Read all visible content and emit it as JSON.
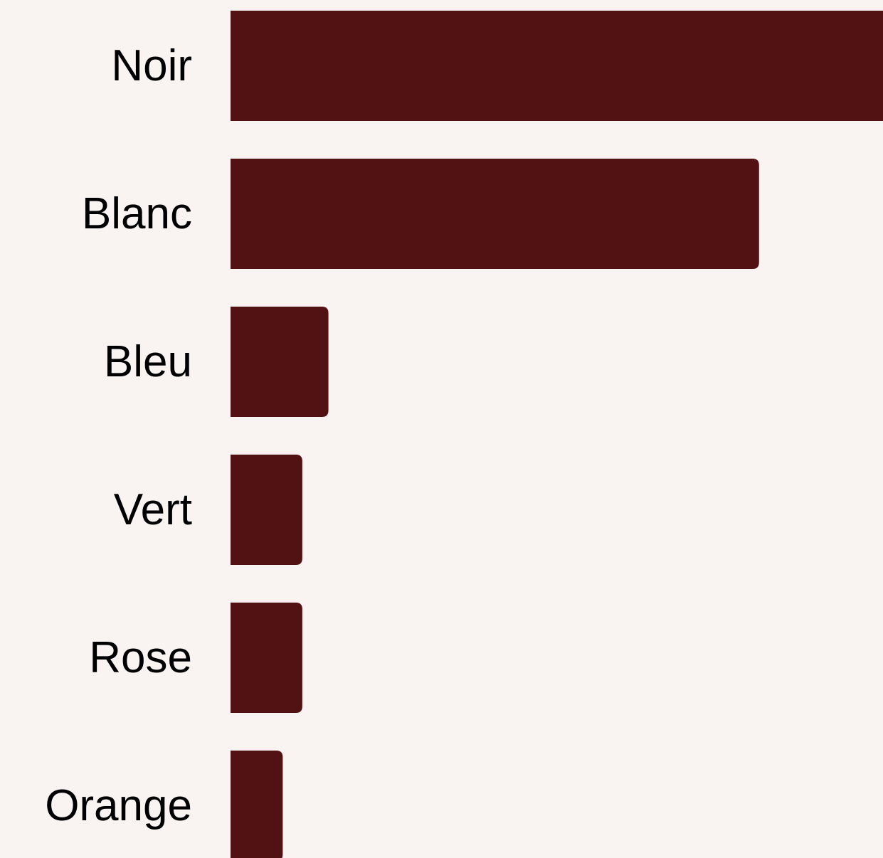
{
  "chart_data": {
    "type": "barh",
    "categories": [
      "Noir",
      "Blanc",
      "Bleu",
      "Vert",
      "Rose",
      "Orange"
    ],
    "values": [
      100,
      81,
      15,
      11,
      11,
      8
    ],
    "color": "#521214",
    "xlim": [
      0,
      100
    ]
  }
}
